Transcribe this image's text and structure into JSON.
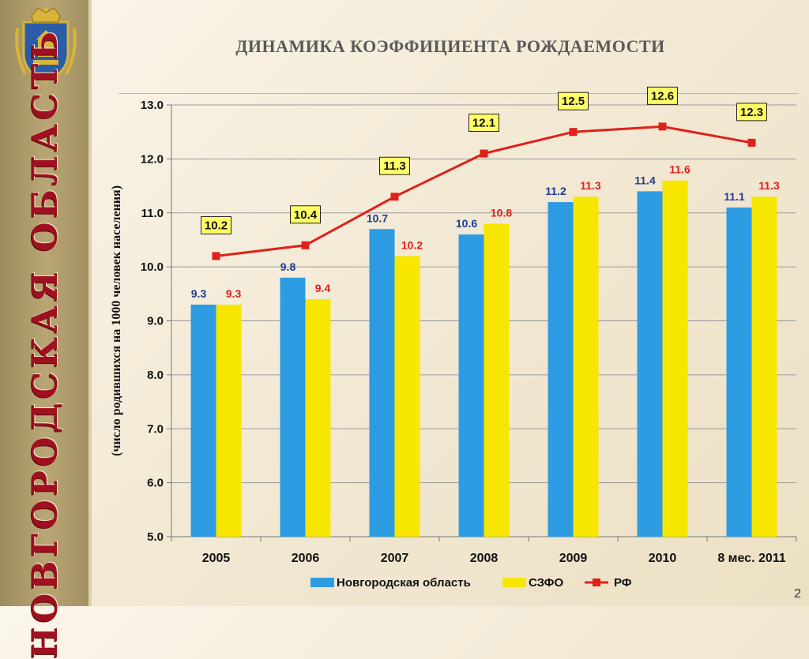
{
  "sidebar": {
    "vertical_title": "НОВГОРОДСКАЯ ОБЛАСТЬ"
  },
  "slide": {
    "title": "ДИНАМИКА КОЭФФИЦИЕНТА РОЖДАЕМОСТИ",
    "page_number": "2"
  },
  "chart_data": {
    "type": "bar",
    "categories": [
      "2005",
      "2006",
      "2007",
      "2008",
      "2009",
      "2010",
      "8 мес. 2011"
    ],
    "series": [
      {
        "name": "Новгородская область",
        "kind": "bar",
        "color": "#2e9ce3",
        "label_color": "#1f3a93",
        "values": [
          9.3,
          9.8,
          10.7,
          10.6,
          11.2,
          11.4,
          11.1
        ]
      },
      {
        "name": "СЗФО",
        "kind": "bar",
        "color": "#f7e600",
        "label_color": "#e0201b",
        "values": [
          9.3,
          9.4,
          10.2,
          10.8,
          11.3,
          11.6,
          11.3
        ]
      },
      {
        "name": "РФ",
        "kind": "line",
        "color": "#e0201b",
        "values": [
          10.2,
          10.4,
          11.3,
          12.1,
          12.5,
          12.6,
          12.3
        ]
      }
    ],
    "ylabel": "(число родившихся на 1000 человек населения)",
    "ylim": [
      5.0,
      13.0
    ],
    "yticks": [
      "5.0",
      "6.0",
      "7.0",
      "8.0",
      "9.0",
      "10.0",
      "11.0",
      "12.0",
      "13.0"
    ],
    "grid": true,
    "legend": "bottom"
  }
}
